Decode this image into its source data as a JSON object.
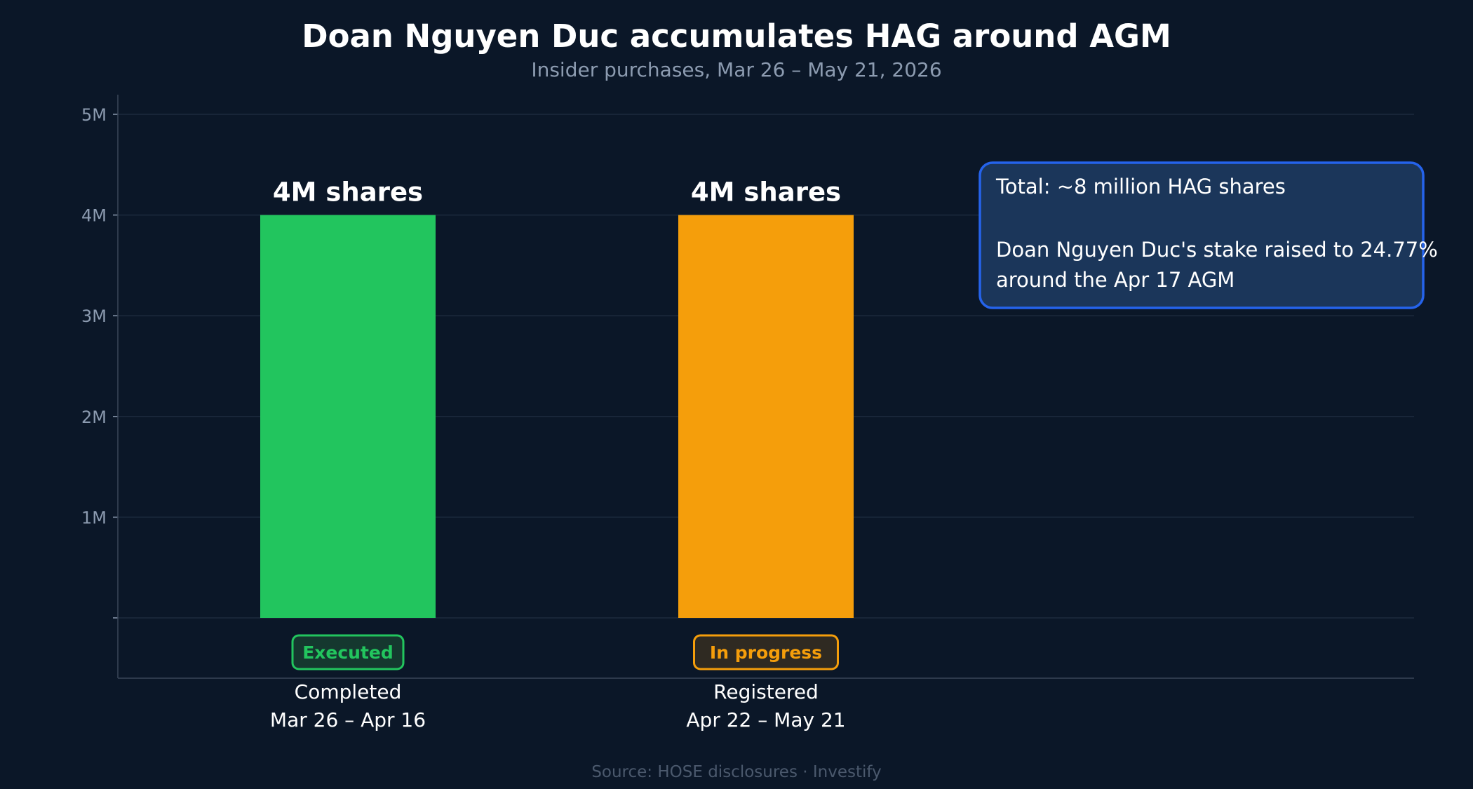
{
  "chart_data": {
    "type": "bar",
    "title": "Doan Nguyen Duc accumulates HAG around AGM",
    "subtitle": "Insider purchases, Mar 26 – May 21, 2026",
    "xlabel": "",
    "ylabel": "",
    "ylim": [
      -600000,
      5200000
    ],
    "yticks": [
      {
        "value": 1000000,
        "label": "1M"
      },
      {
        "value": 2000000,
        "label": "2M"
      },
      {
        "value": 3000000,
        "label": "3M"
      },
      {
        "value": 4000000,
        "label": "4M"
      },
      {
        "value": 5000000,
        "label": "5M"
      }
    ],
    "grid": true,
    "categories": [
      {
        "status": "Executed",
        "label_line1": "Completed",
        "label_line2": "Mar 26 – Apr 16",
        "value": 4000000,
        "value_label": "4M shares",
        "color": "#22c55e",
        "badge_color": "#22c55e",
        "badge_bg": "#15382f"
      },
      {
        "status": "In progress",
        "label_line1": "Registered",
        "label_line2": "Apr 22 – May 21",
        "value": 4000000,
        "value_label": "4M shares",
        "color": "#f59e0b",
        "badge_color": "#f59e0b",
        "badge_bg": "#2f2a22"
      }
    ],
    "annotation": {
      "line1": "Total: ~8 million HAG shares",
      "line2": "Doan Nguyen Duc's stake raised to 24.77%",
      "line3": "around the Apr 17 AGM",
      "border_color": "#2563eb",
      "bg_color": "#1b365a"
    },
    "source": "Source: HOSE disclosures · Investify"
  },
  "colors": {
    "background": "#0b1728",
    "grid": "#1c2a3d",
    "axis": "#3a4658",
    "muted_text": "#8c9bb0"
  }
}
